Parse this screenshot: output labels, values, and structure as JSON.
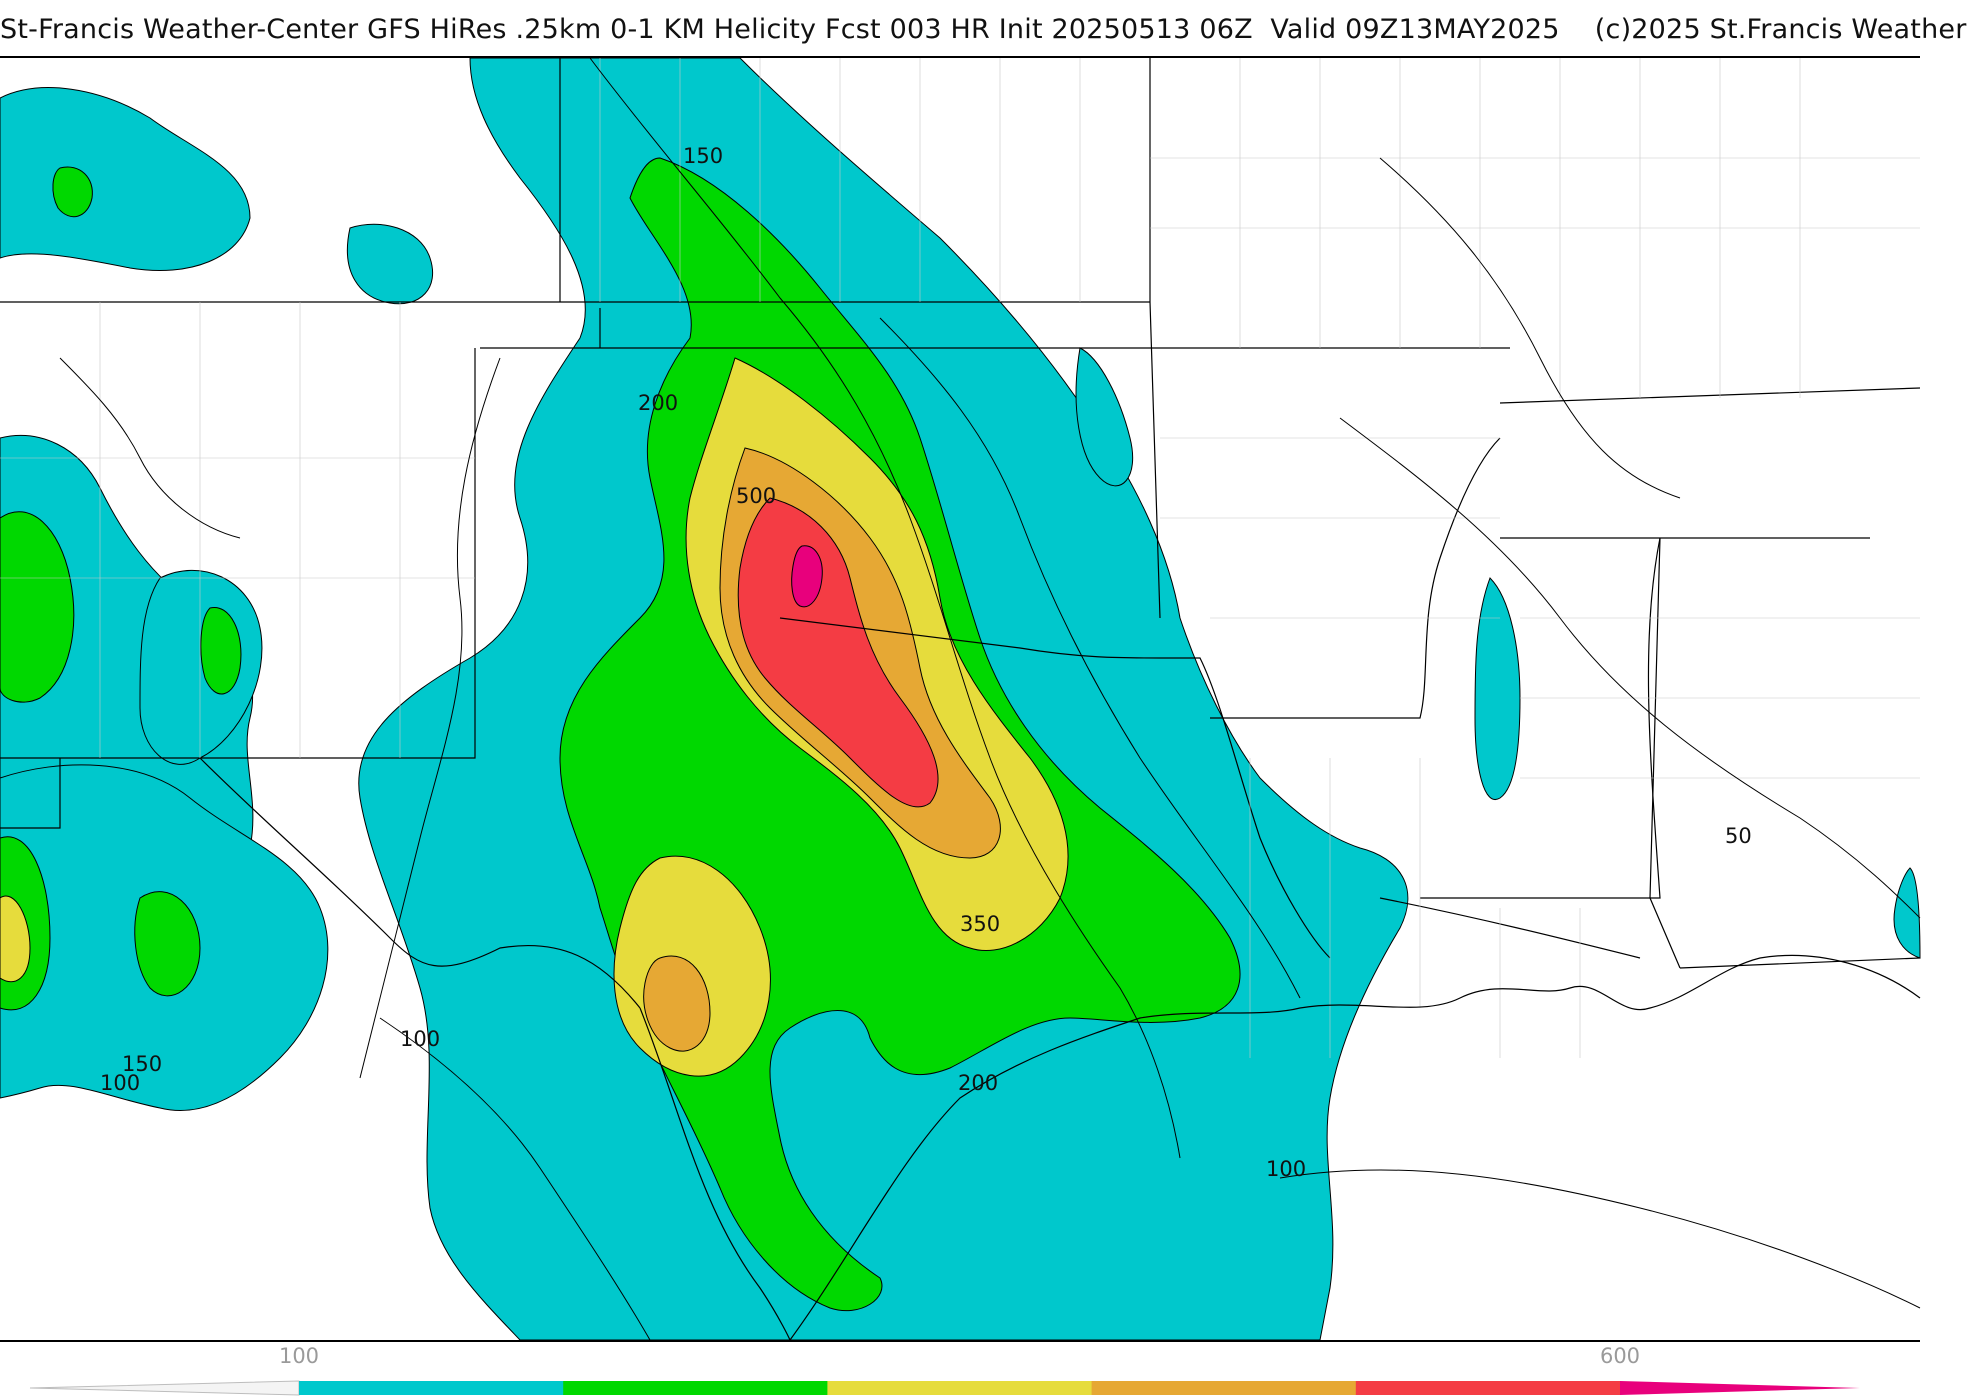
{
  "title": "St-Francis Weather-Center GFS HiRes .25km 0-1 KM Helicity Fcst 003 HR Init 20250513 06Z  Valid 09Z13MAY2025    (c)2025 St.Francis Weather",
  "contour_labels": [
    "150",
    "200",
    "500",
    "350",
    "200",
    "100",
    "150",
    "100",
    "100",
    "50"
  ],
  "legend": {
    "ticks": [
      "100",
      "600"
    ],
    "colors": [
      "#00c8cc",
      "#00d800",
      "#e6dc3c",
      "#e6a834",
      "#f43c44",
      "#e8007c"
    ]
  }
}
